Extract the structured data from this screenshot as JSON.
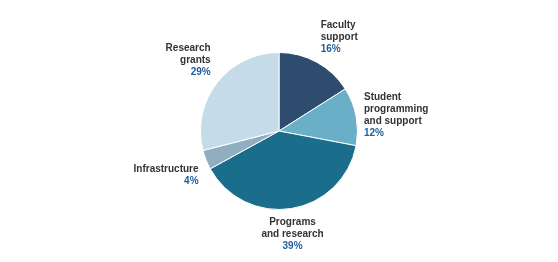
{
  "chart_data": {
    "type": "pie",
    "categories": [
      "Faculty\nsupport",
      "Student\nprogramming\nand support",
      "Programs\nand research",
      "Infrastructure",
      "Research\ngrants"
    ],
    "values": [
      16,
      12,
      39,
      4,
      29
    ],
    "value_labels": [
      "16%",
      "12%",
      "39%",
      "4%",
      "29%"
    ],
    "colors": [
      "#2e4d6e",
      "#6aaec8",
      "#1a6e8c",
      "#8fafc0",
      "#c5dce8"
    ],
    "data_labels": true
  }
}
